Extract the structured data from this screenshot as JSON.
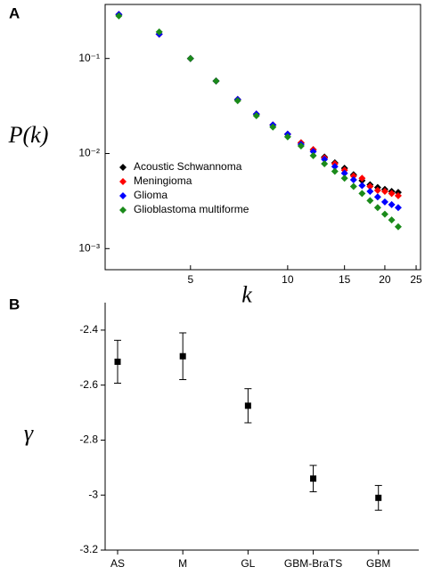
{
  "chart_data": [
    {
      "type": "scatter",
      "panel": "A",
      "xlabel": "k",
      "ylabel": "P(k)",
      "xscale": "log",
      "yscale": "log",
      "xlim": [
        2.72,
        25.8
      ],
      "ylim": [
        0.0006,
        0.37
      ],
      "xticks": [
        5,
        10,
        15,
        20,
        25
      ],
      "yticks": [
        {
          "value": 0.001,
          "label": "10⁻³"
        },
        {
          "value": 0.01,
          "label": "10⁻²"
        },
        {
          "value": 0.1,
          "label": "10⁻¹"
        }
      ],
      "legend": "lower left",
      "x": [
        3,
        4,
        5,
        6,
        7,
        8,
        9,
        10,
        11,
        12,
        13,
        14,
        15,
        16,
        17,
        18,
        19,
        20,
        21,
        22
      ],
      "series": [
        {
          "name": "Acoustic Schwannoma",
          "color": "#000000",
          "values": [
            0.29,
            0.18,
            0.1,
            0.058,
            0.037,
            0.026,
            0.02,
            0.016,
            0.013,
            0.011,
            0.0092,
            0.008,
            0.007,
            0.006,
            0.0052,
            0.0047,
            0.0044,
            0.0042,
            0.004,
            0.0039
          ]
        },
        {
          "name": "Meningioma",
          "color": "#ff0000",
          "values": [
            0.29,
            0.18,
            0.1,
            0.058,
            0.037,
            0.026,
            0.02,
            0.016,
            0.013,
            0.011,
            0.009,
            0.0078,
            0.0067,
            0.0058,
            0.0055,
            0.0045,
            0.0041,
            0.004,
            0.0038,
            0.0036
          ]
        },
        {
          "name": "Glioma",
          "color": "#0000ff",
          "values": [
            0.29,
            0.18,
            0.1,
            0.058,
            0.037,
            0.026,
            0.02,
            0.016,
            0.0125,
            0.0105,
            0.0087,
            0.0073,
            0.0062,
            0.0053,
            0.0046,
            0.004,
            0.0035,
            0.0031,
            0.0029,
            0.0027
          ]
        },
        {
          "name": "Glioblastoma multiforme",
          "color": "#1a8a1a",
          "values": [
            0.28,
            0.19,
            0.1,
            0.058,
            0.036,
            0.025,
            0.019,
            0.015,
            0.012,
            0.0095,
            0.0078,
            0.0065,
            0.0055,
            0.0045,
            0.0038,
            0.0032,
            0.0027,
            0.0023,
            0.002,
            0.0017
          ]
        }
      ]
    },
    {
      "type": "errorbar",
      "panel": "B",
      "ylabel": "γ",
      "ylim": [
        -3.2,
        -2.3
      ],
      "yticks": [
        -2.4,
        -2.6,
        -2.8,
        -3.0,
        -3.2
      ],
      "categories": [
        "AS",
        "M",
        "GL",
        "GBM-BraTS",
        "GBM"
      ],
      "values": [
        -2.515,
        -2.495,
        -2.675,
        -2.94,
        -3.01
      ],
      "errors": [
        0.078,
        0.085,
        0.062,
        0.048,
        0.045
      ],
      "color": "#000000"
    }
  ]
}
